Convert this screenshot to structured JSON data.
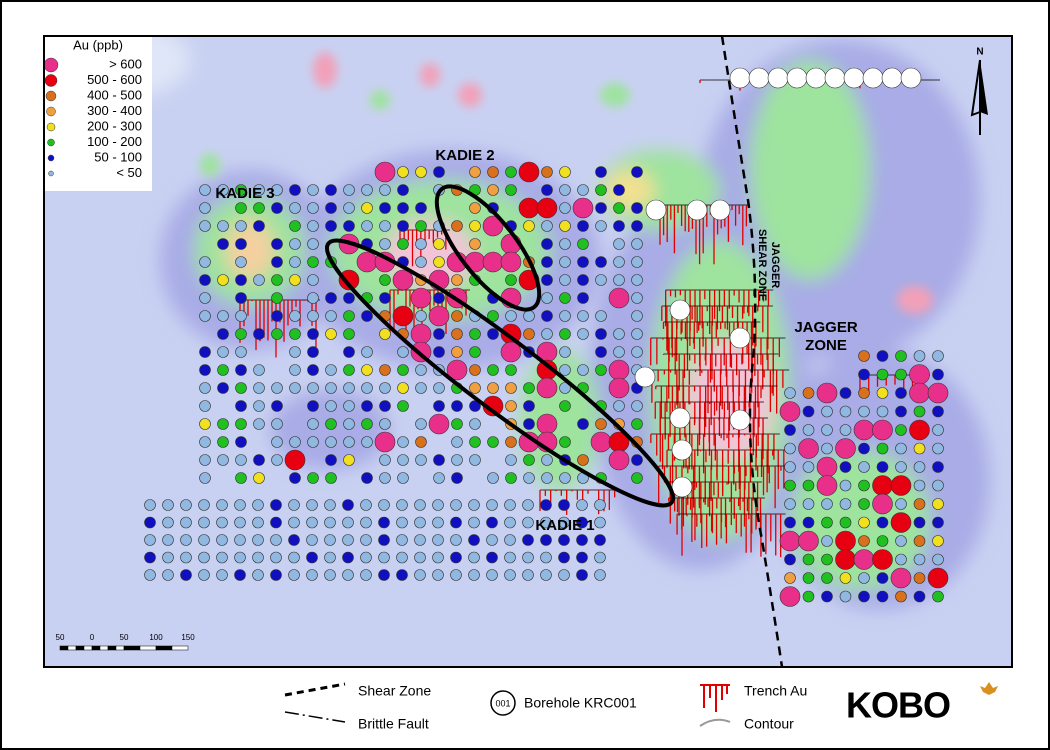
{
  "legend": {
    "title": "Au (ppb)",
    "items": [
      {
        "label": "> 600",
        "color": "#e8308a"
      },
      {
        "label": "500  -  600",
        "color": "#e60012"
      },
      {
        "label": "400  -  500",
        "color": "#d8701c"
      },
      {
        "label": "300  -  400",
        "color": "#f0a040"
      },
      {
        "label": "200  -  300",
        "color": "#f0e020"
      },
      {
        "label": "100  -  200",
        "color": "#20c020"
      },
      {
        "label": "50  -  100",
        "color": "#1010c0"
      },
      {
        "label": "< 50",
        "color": "#90b8e0"
      }
    ]
  },
  "map_labels": {
    "kadie_2": "KADIE 2",
    "kadie_3": "KADIE 3",
    "kadie_1": "KADIE 1",
    "jagger_zone": [
      "JAGGER",
      "ZONE"
    ],
    "jagger_shear_zone": [
      "JAGGER",
      "SHEAR ZONE"
    ],
    "north": "N"
  },
  "scale_bar": {
    "labels": [
      "50",
      "0",
      "50",
      "100",
      "150"
    ]
  },
  "key": {
    "shear_zone": "Shear Zone",
    "brittle_fault": "Brittle Fault",
    "borehole_id": "001",
    "borehole": "Borehole KRC001",
    "trench": "Trench Au",
    "contour": "Contour"
  },
  "logo": "KOBO"
}
